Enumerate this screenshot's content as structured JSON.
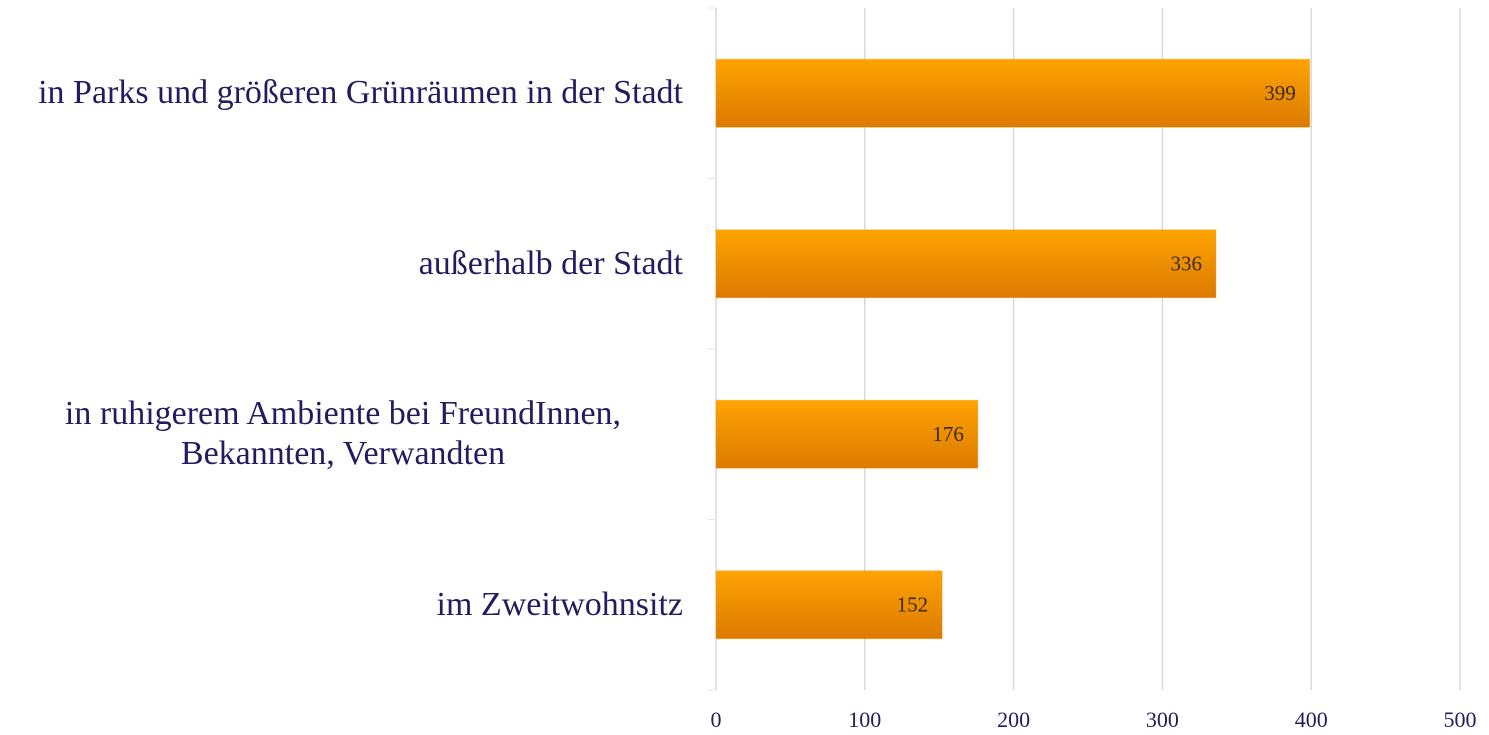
{
  "chart_data": {
    "type": "bar",
    "orientation": "horizontal",
    "categories": [
      "in Parks und größeren Grünräumen in der Stadt",
      "außerhalb der Stadt",
      "in ruhigerem Ambiente bei FreundInnen, Bekannten, Verwandten",
      "im Zweitwohnsitz"
    ],
    "values": [
      399,
      336,
      176,
      152
    ],
    "color": "#f59400",
    "xlim": [
      0,
      500
    ],
    "xticks": [
      0,
      100,
      200,
      300,
      400,
      500
    ],
    "grid": true
  }
}
